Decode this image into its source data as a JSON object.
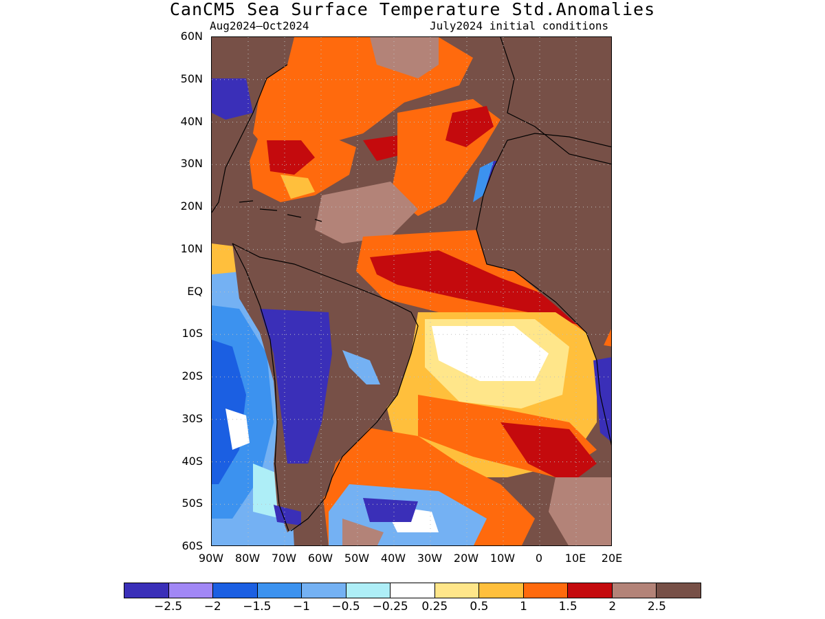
{
  "title": "CanCM5 Sea Surface Temperature Std.Anomalies",
  "subtitle_left": "Aug2024–Oct2024",
  "subtitle_right": "July2024 initial conditions",
  "lat_labels": [
    "60N",
    "50N",
    "40N",
    "30N",
    "20N",
    "10N",
    "EQ",
    "10S",
    "20S",
    "30S",
    "40S",
    "50S",
    "60S"
  ],
  "lon_labels": [
    "90W",
    "80W",
    "70W",
    "60W",
    "50W",
    "40W",
    "30W",
    "20W",
    "10W",
    "0",
    "10E",
    "20E"
  ],
  "colorbar": {
    "colors": [
      "#3a2fb8",
      "#a187f5",
      "#1b5fe2",
      "#3c92ef",
      "#74b1f3",
      "#aeeef7",
      "#ffffff",
      "#ffe68a",
      "#ffbf3c",
      "#ff6a0d",
      "#c40a0d",
      "#b38378",
      "#775047"
    ],
    "labels": [
      "−2.5",
      "−2",
      "−1.5",
      "−1",
      "−0.5",
      "−0.25",
      "0.25",
      "0.5",
      "1",
      "1.5",
      "2",
      "2.5"
    ]
  },
  "map_colors": {
    "land": "#775047",
    "ocean_warm": "#ff6a0d",
    "ocean_hot": "#c40a0d",
    "ocean_mild": "#ffbf3c",
    "ocean_pale": "#ffe68a",
    "ocean_neutral": "#ffffff",
    "ocean_cool": "#74b1f3",
    "ocean_cold": "#3c92ef",
    "ocean_vcold": "#1b5fe2",
    "ocean_purple": "#3a2fb8",
    "ocean_rose": "#b38378",
    "coast": "#000000"
  }
}
